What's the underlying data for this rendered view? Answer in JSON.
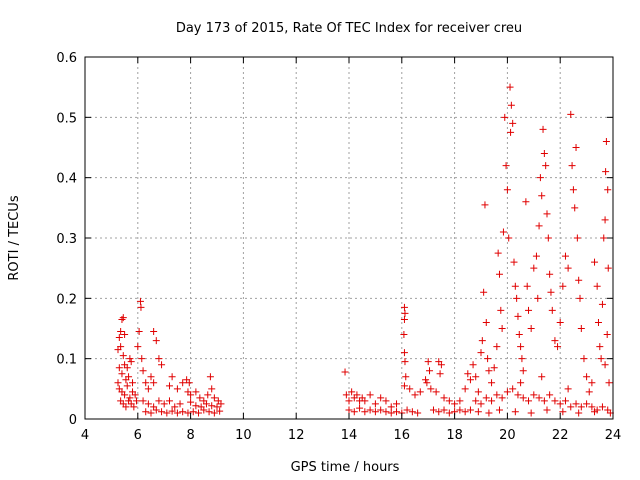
{
  "chart_data": {
    "type": "scatter",
    "title": "Day 173 of 2015, Rate Of TEC Index for receiver creu",
    "xlabel": "GPS time / hours",
    "ylabel": "ROTI / TECUs",
    "xlim": [
      4,
      24
    ],
    "ylim": [
      0,
      0.6
    ],
    "xticks": [
      4,
      6,
      8,
      10,
      12,
      14,
      16,
      18,
      20,
      22,
      24
    ],
    "yticks": [
      0,
      0.1,
      0.2,
      0.3,
      0.4,
      0.5,
      0.6
    ],
    "xtick_labels": [
      "4",
      "6",
      "8",
      "10",
      "12",
      "14",
      "16",
      "18",
      "20",
      "22",
      "24"
    ],
    "ytick_labels": [
      "0",
      "0.1",
      "0.2",
      "0.3",
      "0.4",
      "0.5",
      "0.6"
    ],
    "grid": true,
    "marker": "+",
    "color": "#e00000",
    "series": [
      {
        "name": "ROTI",
        "points": [
          [
            5.25,
            0.115
          ],
          [
            5.3,
            0.135
          ],
          [
            5.35,
            0.145
          ],
          [
            5.4,
            0.165
          ],
          [
            5.45,
            0.168
          ],
          [
            5.5,
            0.14
          ],
          [
            5.35,
            0.12
          ],
          [
            5.45,
            0.105
          ],
          [
            5.3,
            0.085
          ],
          [
            5.4,
            0.075
          ],
          [
            5.5,
            0.09
          ],
          [
            5.6,
            0.085
          ],
          [
            5.7,
            0.1
          ],
          [
            5.75,
            0.095
          ],
          [
            5.65,
            0.07
          ],
          [
            5.8,
            0.06
          ],
          [
            5.3,
            0.05
          ],
          [
            5.4,
            0.045
          ],
          [
            5.5,
            0.04
          ],
          [
            5.6,
            0.055
          ],
          [
            5.7,
            0.035
          ],
          [
            5.8,
            0.045
          ],
          [
            5.9,
            0.04
          ],
          [
            5.35,
            0.03
          ],
          [
            5.45,
            0.025
          ],
          [
            5.55,
            0.02
          ],
          [
            5.65,
            0.03
          ],
          [
            5.75,
            0.025
          ],
          [
            5.85,
            0.02
          ],
          [
            5.95,
            0.03
          ],
          [
            5.25,
            0.06
          ],
          [
            5.55,
            0.065
          ],
          [
            6.1,
            0.195
          ],
          [
            6.12,
            0.185
          ],
          [
            6.05,
            0.145
          ],
          [
            6.0,
            0.12
          ],
          [
            6.15,
            0.1
          ],
          [
            6.2,
            0.08
          ],
          [
            6.3,
            0.06
          ],
          [
            6.4,
            0.05
          ],
          [
            6.6,
            0.145
          ],
          [
            6.7,
            0.13
          ],
          [
            6.8,
            0.1
          ],
          [
            6.9,
            0.09
          ],
          [
            6.5,
            0.07
          ],
          [
            6.6,
            0.06
          ],
          [
            6.2,
            0.03
          ],
          [
            6.4,
            0.025
          ],
          [
            6.6,
            0.02
          ],
          [
            6.8,
            0.03
          ],
          [
            7.0,
            0.025
          ],
          [
            7.2,
            0.03
          ],
          [
            7.4,
            0.02
          ],
          [
            7.6,
            0.025
          ],
          [
            7.2,
            0.055
          ],
          [
            7.3,
            0.07
          ],
          [
            7.5,
            0.05
          ],
          [
            7.7,
            0.06
          ],
          [
            7.9,
            0.045
          ],
          [
            8.0,
            0.04
          ],
          [
            7.85,
            0.065
          ],
          [
            7.95,
            0.06
          ],
          [
            6.3,
            0.012
          ],
          [
            6.5,
            0.01
          ],
          [
            6.7,
            0.015
          ],
          [
            6.9,
            0.012
          ],
          [
            7.1,
            0.01
          ],
          [
            7.3,
            0.013
          ],
          [
            7.5,
            0.01
          ],
          [
            7.7,
            0.012
          ],
          [
            7.9,
            0.01
          ],
          [
            8.1,
            0.012
          ],
          [
            8.3,
            0.01
          ],
          [
            8.5,
            0.015
          ],
          [
            8.7,
            0.012
          ],
          [
            8.9,
            0.01
          ],
          [
            9.1,
            0.013
          ],
          [
            8.2,
            0.045
          ],
          [
            8.35,
            0.035
          ],
          [
            8.5,
            0.03
          ],
          [
            8.65,
            0.04
          ],
          [
            8.8,
            0.05
          ],
          [
            8.75,
            0.07
          ],
          [
            8.9,
            0.035
          ],
          [
            9.05,
            0.03
          ],
          [
            8.0,
            0.028
          ],
          [
            8.2,
            0.022
          ],
          [
            8.4,
            0.02
          ],
          [
            8.6,
            0.025
          ],
          [
            8.8,
            0.022
          ],
          [
            9.0,
            0.02
          ],
          [
            9.15,
            0.025
          ],
          [
            13.85,
            0.078
          ],
          [
            13.9,
            0.04
          ],
          [
            14.0,
            0.03
          ],
          [
            14.1,
            0.045
          ],
          [
            14.2,
            0.035
          ],
          [
            14.3,
            0.04
          ],
          [
            14.4,
            0.03
          ],
          [
            14.5,
            0.035
          ],
          [
            14.0,
            0.015
          ],
          [
            14.2,
            0.012
          ],
          [
            14.4,
            0.018
          ],
          [
            14.6,
            0.012
          ],
          [
            14.8,
            0.015
          ],
          [
            15.0,
            0.012
          ],
          [
            15.2,
            0.015
          ],
          [
            15.4,
            0.012
          ],
          [
            14.6,
            0.03
          ],
          [
            14.8,
            0.04
          ],
          [
            15.0,
            0.025
          ],
          [
            15.2,
            0.035
          ],
          [
            15.4,
            0.03
          ],
          [
            15.6,
            0.02
          ],
          [
            15.8,
            0.025
          ],
          [
            15.6,
            0.01
          ],
          [
            15.8,
            0.012
          ],
          [
            16.0,
            0.01
          ],
          [
            16.2,
            0.015
          ],
          [
            16.4,
            0.012
          ],
          [
            16.6,
            0.01
          ],
          [
            16.1,
            0.185
          ],
          [
            16.12,
            0.175
          ],
          [
            16.1,
            0.165
          ],
          [
            16.08,
            0.14
          ],
          [
            16.1,
            0.11
          ],
          [
            16.12,
            0.095
          ],
          [
            16.15,
            0.07
          ],
          [
            16.1,
            0.055
          ],
          [
            16.3,
            0.05
          ],
          [
            16.5,
            0.04
          ],
          [
            16.7,
            0.045
          ],
          [
            16.9,
            0.065
          ],
          [
            17.0,
            0.095
          ],
          [
            17.05,
            0.08
          ],
          [
            16.95,
            0.06
          ],
          [
            17.1,
            0.05
          ],
          [
            17.4,
            0.095
          ],
          [
            17.5,
            0.09
          ],
          [
            17.45,
            0.075
          ],
          [
            17.3,
            0.045
          ],
          [
            17.6,
            0.035
          ],
          [
            17.8,
            0.03
          ],
          [
            18.0,
            0.025
          ],
          [
            18.2,
            0.03
          ],
          [
            17.2,
            0.015
          ],
          [
            17.4,
            0.012
          ],
          [
            17.6,
            0.015
          ],
          [
            17.8,
            0.01
          ],
          [
            18.0,
            0.012
          ],
          [
            18.2,
            0.015
          ],
          [
            18.4,
            0.012
          ],
          [
            18.6,
            0.015
          ],
          [
            18.4,
            0.05
          ],
          [
            18.5,
            0.075
          ],
          [
            18.6,
            0.065
          ],
          [
            18.7,
            0.09
          ],
          [
            18.8,
            0.07
          ],
          [
            18.9,
            0.045
          ],
          [
            19.0,
            0.11
          ],
          [
            19.05,
            0.13
          ],
          [
            19.1,
            0.21
          ],
          [
            19.15,
            0.355
          ],
          [
            19.2,
            0.16
          ],
          [
            19.25,
            0.1
          ],
          [
            19.3,
            0.08
          ],
          [
            19.4,
            0.06
          ],
          [
            19.5,
            0.085
          ],
          [
            19.6,
            0.12
          ],
          [
            19.65,
            0.275
          ],
          [
            19.7,
            0.24
          ],
          [
            19.75,
            0.18
          ],
          [
            19.8,
            0.15
          ],
          [
            19.85,
            0.31
          ],
          [
            19.9,
            0.5
          ],
          [
            19.95,
            0.42
          ],
          [
            20.0,
            0.38
          ],
          [
            20.05,
            0.3
          ],
          [
            20.1,
            0.55
          ],
          [
            20.15,
            0.52
          ],
          [
            20.12,
            0.475
          ],
          [
            20.2,
            0.49
          ],
          [
            20.25,
            0.26
          ],
          [
            20.3,
            0.22
          ],
          [
            20.35,
            0.2
          ],
          [
            20.4,
            0.17
          ],
          [
            20.45,
            0.14
          ],
          [
            20.5,
            0.12
          ],
          [
            20.55,
            0.1
          ],
          [
            20.6,
            0.08
          ],
          [
            20.7,
            0.36
          ],
          [
            20.75,
            0.22
          ],
          [
            20.8,
            0.18
          ],
          [
            20.9,
            0.15
          ],
          [
            21.0,
            0.25
          ],
          [
            21.1,
            0.27
          ],
          [
            21.15,
            0.2
          ],
          [
            21.2,
            0.32
          ],
          [
            21.25,
            0.4
          ],
          [
            21.3,
            0.37
          ],
          [
            21.35,
            0.48
          ],
          [
            21.4,
            0.44
          ],
          [
            21.45,
            0.42
          ],
          [
            21.5,
            0.34
          ],
          [
            21.55,
            0.3
          ],
          [
            21.6,
            0.24
          ],
          [
            21.65,
            0.21
          ],
          [
            21.7,
            0.18
          ],
          [
            21.8,
            0.13
          ],
          [
            21.9,
            0.12
          ],
          [
            22.0,
            0.16
          ],
          [
            22.1,
            0.22
          ],
          [
            22.2,
            0.27
          ],
          [
            22.3,
            0.25
          ],
          [
            22.4,
            0.505
          ],
          [
            22.45,
            0.42
          ],
          [
            22.5,
            0.38
          ],
          [
            22.55,
            0.35
          ],
          [
            22.6,
            0.45
          ],
          [
            22.65,
            0.3
          ],
          [
            22.7,
            0.23
          ],
          [
            22.75,
            0.2
          ],
          [
            22.8,
            0.15
          ],
          [
            22.9,
            0.1
          ],
          [
            23.0,
            0.07
          ],
          [
            23.2,
            0.06
          ],
          [
            23.3,
            0.26
          ],
          [
            23.4,
            0.22
          ],
          [
            23.45,
            0.16
          ],
          [
            23.5,
            0.12
          ],
          [
            23.55,
            0.1
          ],
          [
            23.6,
            0.19
          ],
          [
            23.65,
            0.3
          ],
          [
            23.7,
            0.33
          ],
          [
            23.72,
            0.41
          ],
          [
            23.75,
            0.46
          ],
          [
            23.8,
            0.38
          ],
          [
            23.82,
            0.25
          ],
          [
            23.78,
            0.14
          ],
          [
            23.7,
            0.09
          ],
          [
            23.85,
            0.06
          ],
          [
            18.8,
            0.03
          ],
          [
            19.0,
            0.025
          ],
          [
            19.2,
            0.035
          ],
          [
            19.4,
            0.03
          ],
          [
            19.6,
            0.04
          ],
          [
            19.8,
            0.035
          ],
          [
            20.0,
            0.045
          ],
          [
            20.2,
            0.05
          ],
          [
            20.4,
            0.04
          ],
          [
            20.6,
            0.035
          ],
          [
            20.8,
            0.03
          ],
          [
            21.0,
            0.04
          ],
          [
            21.2,
            0.035
          ],
          [
            21.4,
            0.03
          ],
          [
            21.6,
            0.04
          ],
          [
            21.8,
            0.03
          ],
          [
            22.0,
            0.025
          ],
          [
            22.2,
            0.03
          ],
          [
            22.4,
            0.02
          ],
          [
            22.6,
            0.025
          ],
          [
            22.8,
            0.02
          ],
          [
            23.0,
            0.025
          ],
          [
            23.2,
            0.02
          ],
          [
            23.4,
            0.015
          ],
          [
            23.6,
            0.02
          ],
          [
            23.8,
            0.015
          ],
          [
            18.9,
            0.012
          ],
          [
            19.3,
            0.01
          ],
          [
            19.7,
            0.015
          ],
          [
            20.3,
            0.012
          ],
          [
            20.9,
            0.01
          ],
          [
            21.5,
            0.015
          ],
          [
            22.1,
            0.012
          ],
          [
            22.7,
            0.01
          ],
          [
            23.3,
            0.012
          ],
          [
            23.9,
            0.01
          ],
          [
            20.5,
            0.06
          ],
          [
            21.3,
            0.07
          ],
          [
            22.3,
            0.05
          ],
          [
            23.1,
            0.045
          ]
        ]
      }
    ]
  }
}
